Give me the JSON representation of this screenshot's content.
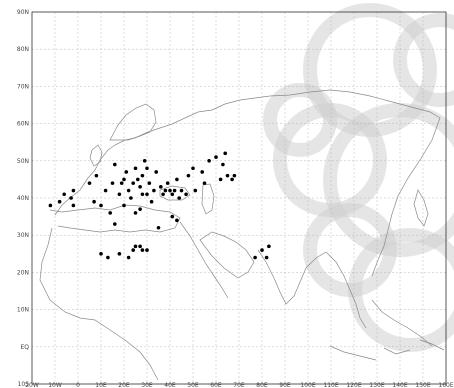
{
  "map": {
    "lat_range": [
      -10,
      90
    ],
    "lon_range": [
      -20,
      160
    ],
    "lat_labels": [
      {
        "lat": 90,
        "label": "90N"
      },
      {
        "lat": 80,
        "label": "80N"
      },
      {
        "lat": 70,
        "label": "70N"
      },
      {
        "lat": 60,
        "label": "60N"
      },
      {
        "lat": 50,
        "label": "50N"
      },
      {
        "lat": 40,
        "label": "40N"
      },
      {
        "lat": 30,
        "label": "30N"
      },
      {
        "lat": 20,
        "label": "20N"
      },
      {
        "lat": 10,
        "label": "10N"
      },
      {
        "lat": 0,
        "label": "EQ"
      },
      {
        "lat": -10,
        "label": "10S"
      }
    ],
    "lon_labels": [
      {
        "lon": -20,
        "label": "20W"
      },
      {
        "lon": -10,
        "label": "10W"
      },
      {
        "lon": 0,
        "label": "0"
      },
      {
        "lon": 10,
        "label": "10E"
      },
      {
        "lon": 20,
        "label": "20E"
      },
      {
        "lon": 30,
        "label": "30E"
      },
      {
        "lon": 40,
        "label": "40E"
      },
      {
        "lon": 50,
        "label": "50E"
      },
      {
        "lon": 60,
        "label": "60E"
      },
      {
        "lon": 70,
        "label": "70E"
      },
      {
        "lon": 80,
        "label": "80E"
      },
      {
        "lon": 90,
        "label": "90E"
      },
      {
        "lon": 100,
        "label": "100E"
      },
      {
        "lon": 110,
        "label": "110E"
      },
      {
        "lon": 120,
        "label": "120E"
      },
      {
        "lon": 130,
        "label": "130E"
      },
      {
        "lon": 140,
        "label": "140E"
      },
      {
        "lon": 150,
        "label": "150E"
      },
      {
        "lon": 160,
        "label": "160E"
      }
    ],
    "grid": true,
    "colors": {
      "coast": "#888888",
      "grid": "#aaaaaa",
      "frame": "#333333",
      "point": "#000000",
      "watermark": "#d0d0d0"
    },
    "stations": [
      {
        "lon": -12,
        "lat": 38
      },
      {
        "lon": -8,
        "lat": 39
      },
      {
        "lon": -6,
        "lat": 41
      },
      {
        "lon": -3,
        "lat": 40
      },
      {
        "lon": -2,
        "lat": 38
      },
      {
        "lon": -2,
        "lat": 42
      },
      {
        "lon": 5,
        "lat": 44
      },
      {
        "lon": 7,
        "lat": 39
      },
      {
        "lon": 8,
        "lat": 46
      },
      {
        "lon": 10,
        "lat": 38
      },
      {
        "lon": 12,
        "lat": 42
      },
      {
        "lon": 14,
        "lat": 36
      },
      {
        "lon": 15,
        "lat": 44
      },
      {
        "lon": 16,
        "lat": 49
      },
      {
        "lon": 18,
        "lat": 41
      },
      {
        "lon": 19,
        "lat": 44
      },
      {
        "lon": 20,
        "lat": 45
      },
      {
        "lon": 20,
        "lat": 38
      },
      {
        "lon": 21,
        "lat": 47
      },
      {
        "lon": 22,
        "lat": 42
      },
      {
        "lon": 23,
        "lat": 40
      },
      {
        "lon": 24,
        "lat": 44
      },
      {
        "lon": 25,
        "lat": 48
      },
      {
        "lon": 26,
        "lat": 45
      },
      {
        "lon": 27,
        "lat": 37
      },
      {
        "lon": 27,
        "lat": 43
      },
      {
        "lon": 28,
        "lat": 41
      },
      {
        "lon": 28,
        "lat": 46
      },
      {
        "lon": 29,
        "lat": 50
      },
      {
        "lon": 30,
        "lat": 48
      },
      {
        "lon": 30,
        "lat": 41
      },
      {
        "lon": 31,
        "lat": 44
      },
      {
        "lon": 32,
        "lat": 39
      },
      {
        "lon": 33,
        "lat": 42
      },
      {
        "lon": 34,
        "lat": 47
      },
      {
        "lon": 36,
        "lat": 43
      },
      {
        "lon": 37,
        "lat": 41
      },
      {
        "lon": 38,
        "lat": 42
      },
      {
        "lon": 39,
        "lat": 44
      },
      {
        "lon": 40,
        "lat": 42
      },
      {
        "lon": 41,
        "lat": 41
      },
      {
        "lon": 42,
        "lat": 42
      },
      {
        "lon": 43,
        "lat": 45
      },
      {
        "lon": 44,
        "lat": 40
      },
      {
        "lon": 45,
        "lat": 42
      },
      {
        "lon": 47,
        "lat": 41
      },
      {
        "lon": 48,
        "lat": 46
      },
      {
        "lon": 50,
        "lat": 48
      },
      {
        "lon": 51,
        "lat": 42
      },
      {
        "lon": 54,
        "lat": 47
      },
      {
        "lon": 55,
        "lat": 44
      },
      {
        "lon": 57,
        "lat": 50
      },
      {
        "lon": 60,
        "lat": 51
      },
      {
        "lon": 62,
        "lat": 45
      },
      {
        "lon": 63,
        "lat": 49
      },
      {
        "lon": 64,
        "lat": 52
      },
      {
        "lon": 65,
        "lat": 46
      },
      {
        "lon": 67,
        "lat": 45
      },
      {
        "lon": 68,
        "lat": 46
      },
      {
        "lon": 16,
        "lat": 33
      },
      {
        "lon": 25,
        "lat": 36
      },
      {
        "lon": 35,
        "lat": 32
      },
      {
        "lon": 41,
        "lat": 35
      },
      {
        "lon": 43,
        "lat": 34
      },
      {
        "lon": 10,
        "lat": 25
      },
      {
        "lon": 13,
        "lat": 24
      },
      {
        "lon": 18,
        "lat": 25
      },
      {
        "lon": 22,
        "lat": 24
      },
      {
        "lon": 24,
        "lat": 26
      },
      {
        "lon": 25,
        "lat": 27
      },
      {
        "lon": 27,
        "lat": 27
      },
      {
        "lon": 28,
        "lat": 26
      },
      {
        "lon": 30,
        "lat": 26
      },
      {
        "lon": 77,
        "lat": 24
      },
      {
        "lon": 80,
        "lat": 26
      },
      {
        "lon": 82,
        "lat": 24
      },
      {
        "lon": 83,
        "lat": 27
      }
    ]
  }
}
